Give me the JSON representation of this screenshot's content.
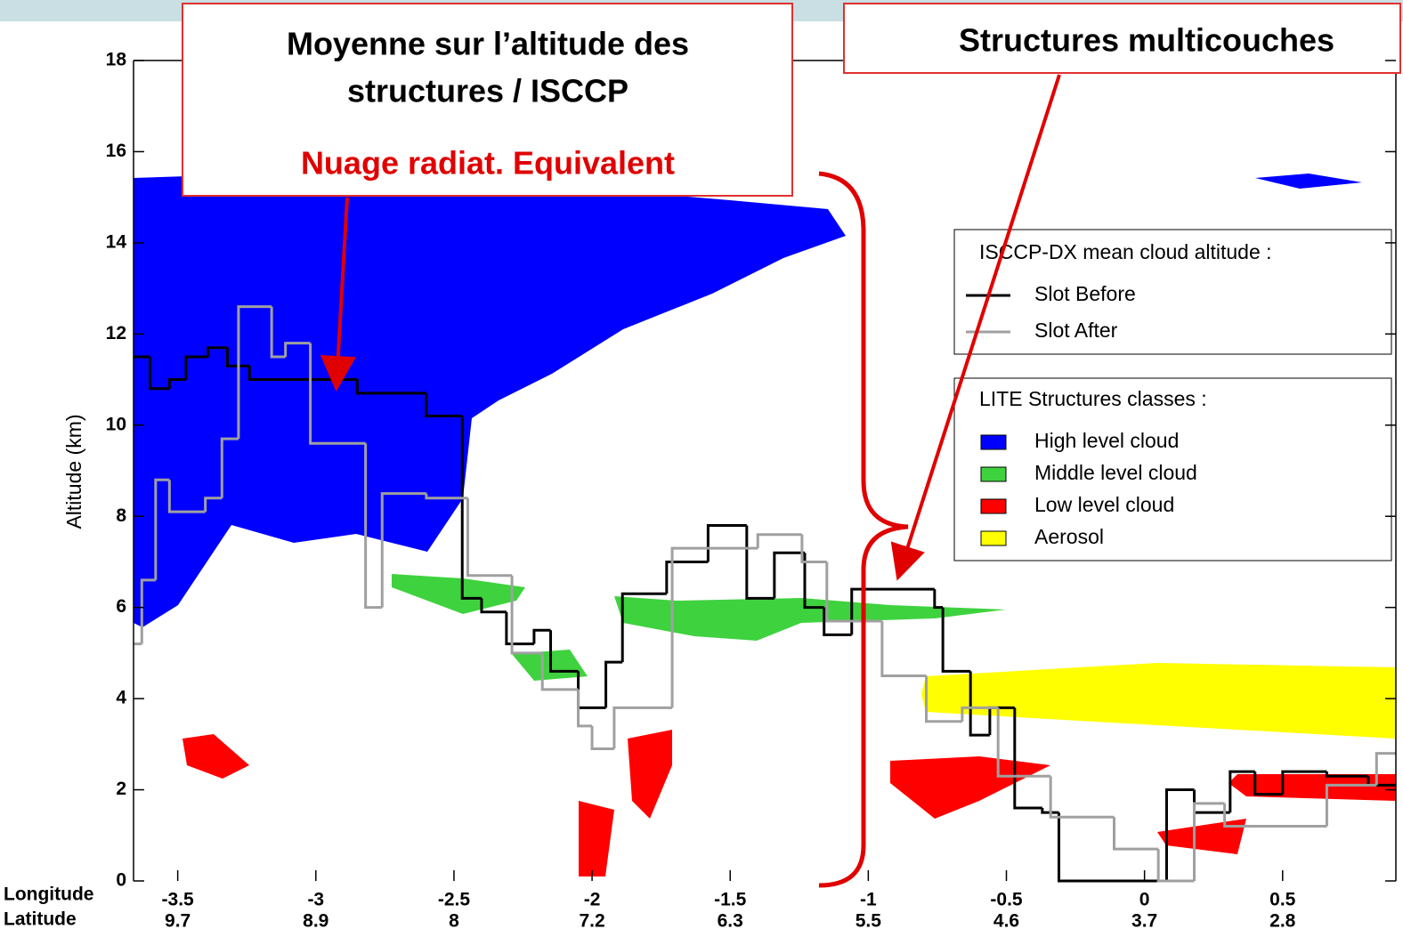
{
  "chart_data": {
    "type": "line",
    "step": true,
    "ylabel": "Altitude (km)",
    "ylim": [
      0,
      18
    ],
    "yticks": [
      0,
      2,
      4,
      6,
      8,
      10,
      12,
      14,
      16,
      18
    ],
    "xlim": [
      -3.66,
      0.91
    ],
    "xticks": [
      -3.5,
      -3,
      -2.5,
      -2,
      -1.5,
      -1,
      -0.5,
      0,
      0.5
    ],
    "latitude_ticks": [
      9.7,
      8.9,
      8,
      7.2,
      6.3,
      5.5,
      4.6,
      3.7,
      2.8
    ],
    "x_row_labels": [
      "Longitude",
      "Latitude"
    ],
    "legend_title": "ISCCP-DX mean cloud altitude :",
    "series": [
      {
        "name": "Slot Before",
        "color": "#000000",
        "x": [
          -3.66,
          -3.6,
          -3.53,
          -3.47,
          -3.39,
          -3.32,
          -3.24,
          -3.08,
          -2.85,
          -2.6,
          -2.47,
          -2.4,
          -2.31,
          -2.21,
          -2.15,
          -2.05,
          -1.95,
          -1.89,
          -1.73,
          -1.58,
          -1.44,
          -1.34,
          -1.23,
          -1.16,
          -1.06,
          -0.76,
          -0.73,
          -0.63,
          -0.56,
          -0.47,
          -0.37,
          -0.31,
          0.05,
          0.08,
          0.18,
          0.31,
          0.4,
          0.5,
          0.66,
          0.81
        ],
        "values": [
          11.5,
          10.8,
          11,
          11.5,
          11.7,
          11.3,
          11,
          11,
          10.7,
          10.2,
          6.2,
          5.9,
          5.2,
          5.5,
          4.6,
          3.8,
          4.8,
          6.3,
          7,
          7.8,
          6.2,
          7.2,
          6,
          5.4,
          6.4,
          6,
          4.6,
          3.2,
          3.8,
          1.6,
          1.5,
          0,
          0,
          2,
          1.5,
          2.4,
          1.9,
          2.4,
          2.3,
          2.1
        ]
      },
      {
        "name": "Slot After",
        "color": "#a0a0a0",
        "x": [
          -3.66,
          -3.63,
          -3.58,
          -3.53,
          -3.4,
          -3.34,
          -3.28,
          -3.16,
          -3.11,
          -3.02,
          -2.82,
          -2.76,
          -2.6,
          -2.45,
          -2.29,
          -2.18,
          -2.05,
          -2,
          -1.92,
          -1.71,
          -1.4,
          -1.24,
          -1.15,
          -0.95,
          -0.79,
          -0.66,
          -0.53,
          -0.34,
          -0.11,
          0.05,
          0.18,
          0.29,
          0.66,
          0.84
        ],
        "values": [
          5.2,
          6.6,
          8.8,
          8.1,
          8.4,
          9.7,
          12.6,
          11.5,
          11.8,
          9.6,
          6,
          8.5,
          8.4,
          6.7,
          5,
          4.2,
          3.4,
          2.9,
          3.8,
          7.3,
          7.6,
          7,
          5.7,
          4.5,
          3.5,
          3.8,
          2.3,
          1.4,
          0.7,
          0,
          1.7,
          1.2,
          2.1,
          2.8
        ]
      }
    ],
    "classes_title": "LITE Structures classes :",
    "classes": [
      {
        "name": "High level cloud",
        "color": "#0000ff"
      },
      {
        "name": "Middle level cloud",
        "color": "#3fd23f"
      },
      {
        "name": "Low level cloud",
        "color": "#ff0000"
      },
      {
        "name": "Aerosol",
        "color": "#ffff00"
      }
    ],
    "annotations": {
      "box1": [
        "Moyenne sur l’altitude des",
        "structures / ISCCP"
      ],
      "box1_highlight": "Nuage radiat. Equivalent",
      "box2": "Structures multicouches"
    }
  }
}
